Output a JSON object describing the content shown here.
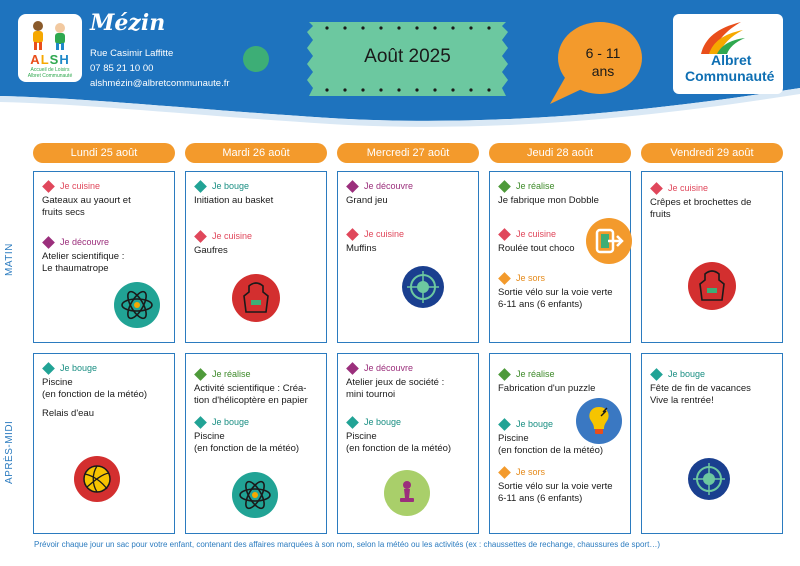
{
  "header": {
    "logo_letters": [
      "A",
      "L",
      "S",
      "H"
    ],
    "logo_subtitle": "Accueil de Loisirs",
    "logo_subtitle2": "Albret Communauté",
    "town": "Mézin",
    "address": "Rue Casimir Laffitte",
    "phone": "07 85 21 10 00",
    "email": "alshmézin@albretcommunaute.fr",
    "month": "Août 2025",
    "age_top": "6 - 11",
    "age_bottom": "ans",
    "brand_line1": "Albret",
    "brand_line2": "Communauté"
  },
  "colors": {
    "blue": "#1e73be",
    "orange": "#f39a2c",
    "green_card": "#6cc8a0",
    "cuisine": "#e0475b",
    "bouge": "#21a395",
    "decouvre": "#9b2f7c",
    "realise": "#4e9a3a",
    "sors": "#f39a2c"
  },
  "days": [
    "Lundi 25 août",
    "Mardi 26 août",
    "Mercredi 27 août",
    "Jeudi 28 août",
    "Vendredi 29 août"
  ],
  "periods": [
    "MATIN",
    "APRÈS-MIDI"
  ],
  "categories": {
    "cuisine": "Je cuisine",
    "bouge": "Je bouge",
    "decouvre": "Je découvre",
    "realise": "Je réalise",
    "sors": "Je sors"
  },
  "morning": [
    {
      "a1": "Gateaux au yaourt et\nfruits secs",
      "a2": "Atelier scientifique :\nLe thaumatrope",
      "icon": "atom-icon"
    },
    {
      "a1": "Initiation au basket",
      "a2": "Gaufres",
      "icon": "apron-icon"
    },
    {
      "a1": "Grand jeu",
      "a2": "Muffins",
      "icon": "target-icon"
    },
    {
      "a1": "Je fabrique mon Dobble",
      "a2": "Roulée tout choco",
      "a3": "Sortie vélo sur la voie verte\n6-11 ans (6 enfants)",
      "icon": "exit-icon"
    },
    {
      "a1": "Crêpes et brochettes de\nfruits",
      "icon": "apron-icon"
    }
  ],
  "afternoon": [
    {
      "a1": "Piscine\n(en fonction de la météo)",
      "a1b": "Relais d'eau",
      "icon": "volleyball-icon"
    },
    {
      "a1": "Activité scientifique : Créa-\ntion d'hélicoptère en papier",
      "a2": "Piscine\n(en fonction de la météo)",
      "icon": "atom-icon"
    },
    {
      "a1": "Atelier jeux de société :\nmini tournoi",
      "a2": "Piscine\n(en fonction de la météo)",
      "icon": "chess-pawn-icon"
    },
    {
      "a1": "Fabrication d'un puzzle",
      "a2": "Piscine\n(en fonction de la météo)",
      "a3": "Sortie vélo sur la voie verte\n6-11 ans (6 enfants)",
      "icon": "lightbulb-icon"
    },
    {
      "a1": "Fête de fin de vacances\nVive la rentrée!",
      "icon": "target-icon"
    }
  ],
  "footer": "Prévoir chaque jour un sac pour votre enfant, contenant des affaires marquées à son nom, selon la météo ou les activités (ex : chaussettes de rechange, chaussures de sport…)"
}
